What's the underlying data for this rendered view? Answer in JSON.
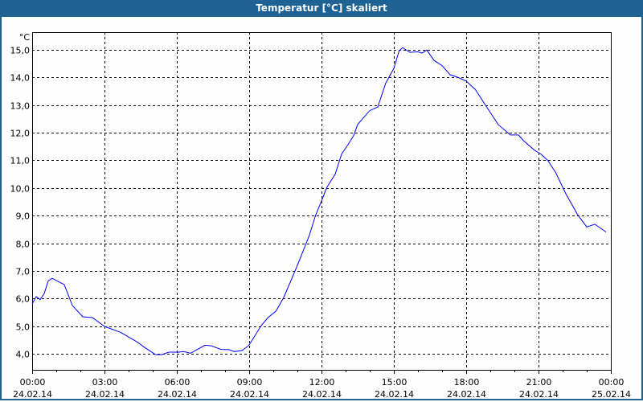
{
  "window": {
    "title": "Temperatur [°C] skaliert"
  },
  "colors": {
    "titlebar": "#1e6193",
    "series": "#0000ff",
    "grid": "#000000"
  },
  "chart_data": {
    "type": "line",
    "title": "Temperatur [°C] skaliert",
    "ylabel": "°C",
    "xlabel": "",
    "grid": true,
    "grid_style": "dashed",
    "ylim": [
      3.42,
      15.64
    ],
    "xlim": [
      "24.02.14 00:00",
      "25.02.14 00:00"
    ],
    "y_ticks": [
      "4,0",
      "5,0",
      "6,0",
      "7,0",
      "8,0",
      "9,0",
      "10,0",
      "11,0",
      "12,0",
      "13,0",
      "14,0",
      "15,0"
    ],
    "x_ticks": [
      {
        "time": "00:00",
        "date": "24.02.14"
      },
      {
        "time": "03:00",
        "date": "24.02.14"
      },
      {
        "time": "06:00",
        "date": "24.02.14"
      },
      {
        "time": "09:00",
        "date": "24.02.14"
      },
      {
        "time": "12:00",
        "date": "24.02.14"
      },
      {
        "time": "15:00",
        "date": "24.02.14"
      },
      {
        "time": "18:00",
        "date": "24.02.14"
      },
      {
        "time": "21:00",
        "date": "24.02.14"
      },
      {
        "time": "00:00",
        "date": "25.02.14"
      }
    ],
    "series": [
      {
        "x": [
          "00:00",
          "00:10",
          "00:20",
          "00:30",
          "00:40",
          "00:50",
          "01:20",
          "01:40",
          "02:06",
          "02:30",
          "03:00",
          "03:40",
          "04:20",
          "04:43",
          "05:07",
          "05:23",
          "05:40",
          "06:04",
          "06:17",
          "06:34",
          "07:10",
          "07:26",
          "07:50",
          "08:10",
          "08:23",
          "08:43",
          "09:00",
          "09:30",
          "09:47",
          "10:07",
          "10:26",
          "11:00",
          "11:30",
          "11:45",
          "12:00",
          "12:13",
          "12:34",
          "12:50",
          "13:06",
          "13:20",
          "13:30",
          "14:00",
          "14:20",
          "14:40",
          "15:00",
          "15:13",
          "15:22",
          "15:40",
          "16:00",
          "16:10",
          "16:22",
          "16:40",
          "17:00",
          "17:20",
          "17:40",
          "18:00",
          "18:23",
          "18:47",
          "19:20",
          "19:50",
          "20:10",
          "20:23",
          "20:50",
          "21:06",
          "21:23",
          "21:43",
          "22:07",
          "22:37",
          "23:00",
          "23:20",
          "23:48"
        ],
        "y": [
          5.8,
          6.07,
          5.96,
          6.18,
          6.64,
          6.73,
          6.5,
          5.75,
          5.34,
          5.31,
          4.99,
          4.78,
          4.44,
          4.2,
          3.97,
          3.97,
          4.06,
          4.06,
          4.08,
          4.02,
          4.31,
          4.29,
          4.16,
          4.15,
          4.08,
          4.12,
          4.32,
          5.02,
          5.31,
          5.55,
          6.04,
          7.2,
          8.3,
          9.0,
          9.53,
          10.02,
          10.5,
          11.23,
          11.57,
          11.9,
          12.3,
          12.8,
          12.93,
          13.8,
          14.33,
          14.96,
          15.08,
          14.91,
          14.93,
          14.88,
          14.99,
          14.62,
          14.43,
          14.1,
          14.0,
          13.87,
          13.56,
          13.02,
          12.29,
          11.92,
          11.92,
          11.71,
          11.37,
          11.23,
          11.0,
          10.55,
          9.82,
          9.04,
          8.59,
          8.69,
          8.41
        ]
      }
    ]
  }
}
